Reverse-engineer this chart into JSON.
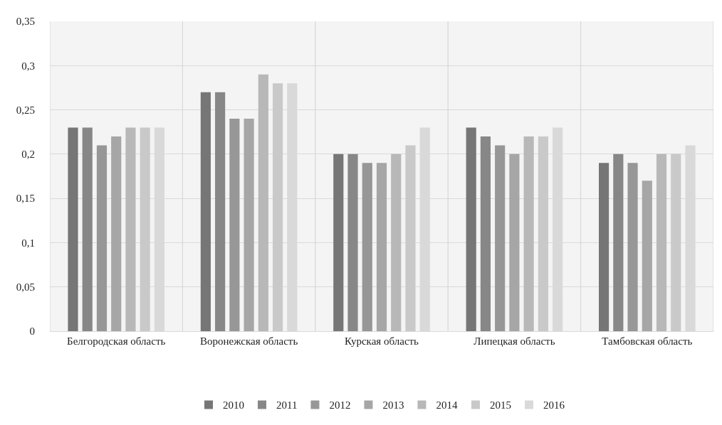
{
  "chart_data": {
    "type": "bar",
    "categories": [
      "Белгородская область",
      "Воронежская область",
      "Курская область",
      "Липецкая область",
      "Тамбовская область"
    ],
    "series": [
      {
        "name": "2010",
        "color": "#767676",
        "values": [
          0.23,
          0.27,
          0.2,
          0.23,
          0.19
        ]
      },
      {
        "name": "2011",
        "color": "#878787",
        "values": [
          0.23,
          0.27,
          0.2,
          0.22,
          0.2
        ]
      },
      {
        "name": "2012",
        "color": "#979797",
        "values": [
          0.21,
          0.24,
          0.19,
          0.21,
          0.19
        ]
      },
      {
        "name": "2013",
        "color": "#a6a6a6",
        "values": [
          0.22,
          0.24,
          0.19,
          0.2,
          0.17
        ]
      },
      {
        "name": "2014",
        "color": "#b8b8b8",
        "values": [
          0.23,
          0.29,
          0.2,
          0.22,
          0.2
        ]
      },
      {
        "name": "2015",
        "color": "#c9c9c9",
        "values": [
          0.23,
          0.28,
          0.21,
          0.22,
          0.2
        ]
      },
      {
        "name": "2016",
        "color": "#d9d9d9",
        "values": [
          0.23,
          0.28,
          0.23,
          0.23,
          0.21
        ]
      }
    ],
    "ylim": [
      0,
      0.35
    ],
    "yticks": [
      {
        "value": 0,
        "label": "0"
      },
      {
        "value": 0.05,
        "label": "0,05"
      },
      {
        "value": 0.1,
        "label": "0,1"
      },
      {
        "value": 0.15,
        "label": "0,15"
      },
      {
        "value": 0.2,
        "label": "0,2"
      },
      {
        "value": 0.25,
        "label": "0,25"
      },
      {
        "value": 0.3,
        "label": "0,3"
      },
      {
        "value": 0.35,
        "label": "0,35"
      }
    ],
    "grid": true,
    "legend": "bottom"
  }
}
